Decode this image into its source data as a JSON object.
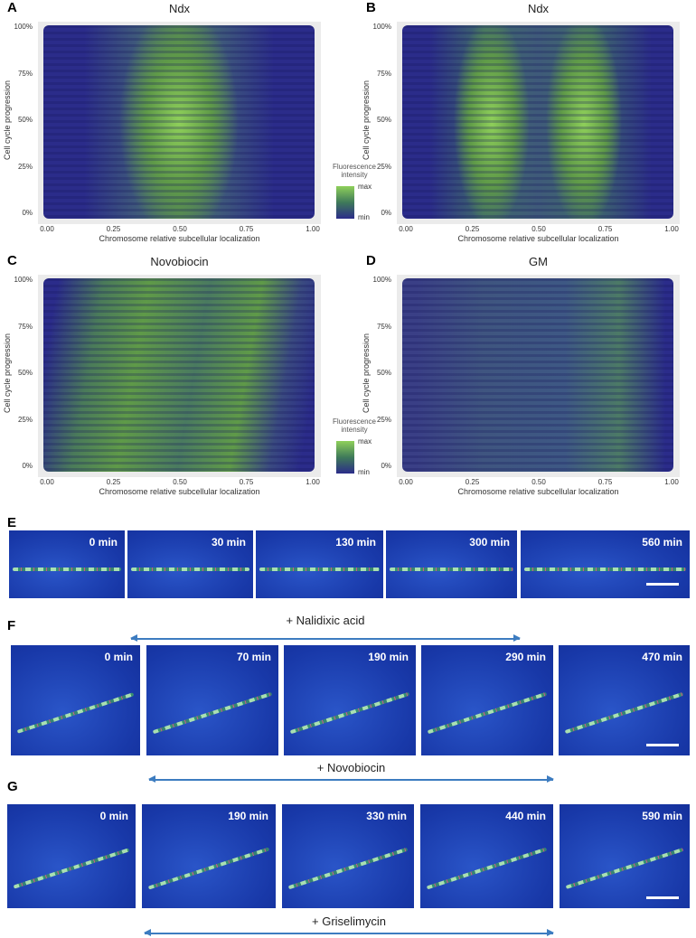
{
  "heatmaps": [
    {
      "label": "A",
      "title": "Ndx",
      "y_label": "Cell cycle progression",
      "x_label": "Chromosome relative subcellular localization",
      "xticks": [
        "0.00",
        "0.25",
        "0.50",
        "0.75",
        "1.00"
      ],
      "yticks": [
        "0%",
        "25%",
        "50%",
        "75%",
        "100%"
      ]
    },
    {
      "label": "B",
      "title": "Ndx",
      "y_label": "Cell cycle progression",
      "x_label": "Chromosome relative subcellular localization",
      "xticks": [
        "0.00",
        "0.25",
        "0.50",
        "0.75",
        "1.00"
      ],
      "yticks": [
        "0%",
        "25%",
        "50%",
        "75%",
        "100%"
      ]
    },
    {
      "label": "C",
      "title": "Novobiocin",
      "y_label": "Cell cycle progression",
      "x_label": "Chromosome relative subcellular localization",
      "xticks": [
        "0.00",
        "0.25",
        "0.50",
        "0.75",
        "1.00"
      ],
      "yticks": [
        "0%",
        "25%",
        "50%",
        "75%",
        "100%"
      ]
    },
    {
      "label": "D",
      "title": "GM",
      "y_label": "Cell cycle progression",
      "x_label": "Chromosome relative subcellular localization",
      "xticks": [
        "0.00",
        "0.25",
        "0.50",
        "0.75",
        "1.00"
      ],
      "yticks": [
        "0%",
        "25%",
        "50%",
        "75%",
        "100%"
      ]
    }
  ],
  "legends": [
    {
      "title": "Fluorescence intensity",
      "max": "max",
      "min": "min"
    },
    {
      "title": "Fluorescence intensity",
      "max": "max",
      "min": "min"
    }
  ],
  "timelapse": [
    {
      "label": "E",
      "frames": [
        "0 min",
        "30 min",
        "130 min",
        "300 min",
        "560 min"
      ],
      "treatment": "+ Nalidixic acid"
    },
    {
      "label": "F",
      "frames": [
        "0 min",
        "70 min",
        "190 min",
        "290 min",
        "470 min"
      ],
      "treatment": "+ Novobiocin"
    },
    {
      "label": "G",
      "frames": [
        "0 min",
        "190 min",
        "330 min",
        "440 min",
        "590 min"
      ],
      "treatment": "+ Griselimycin"
    }
  ]
}
